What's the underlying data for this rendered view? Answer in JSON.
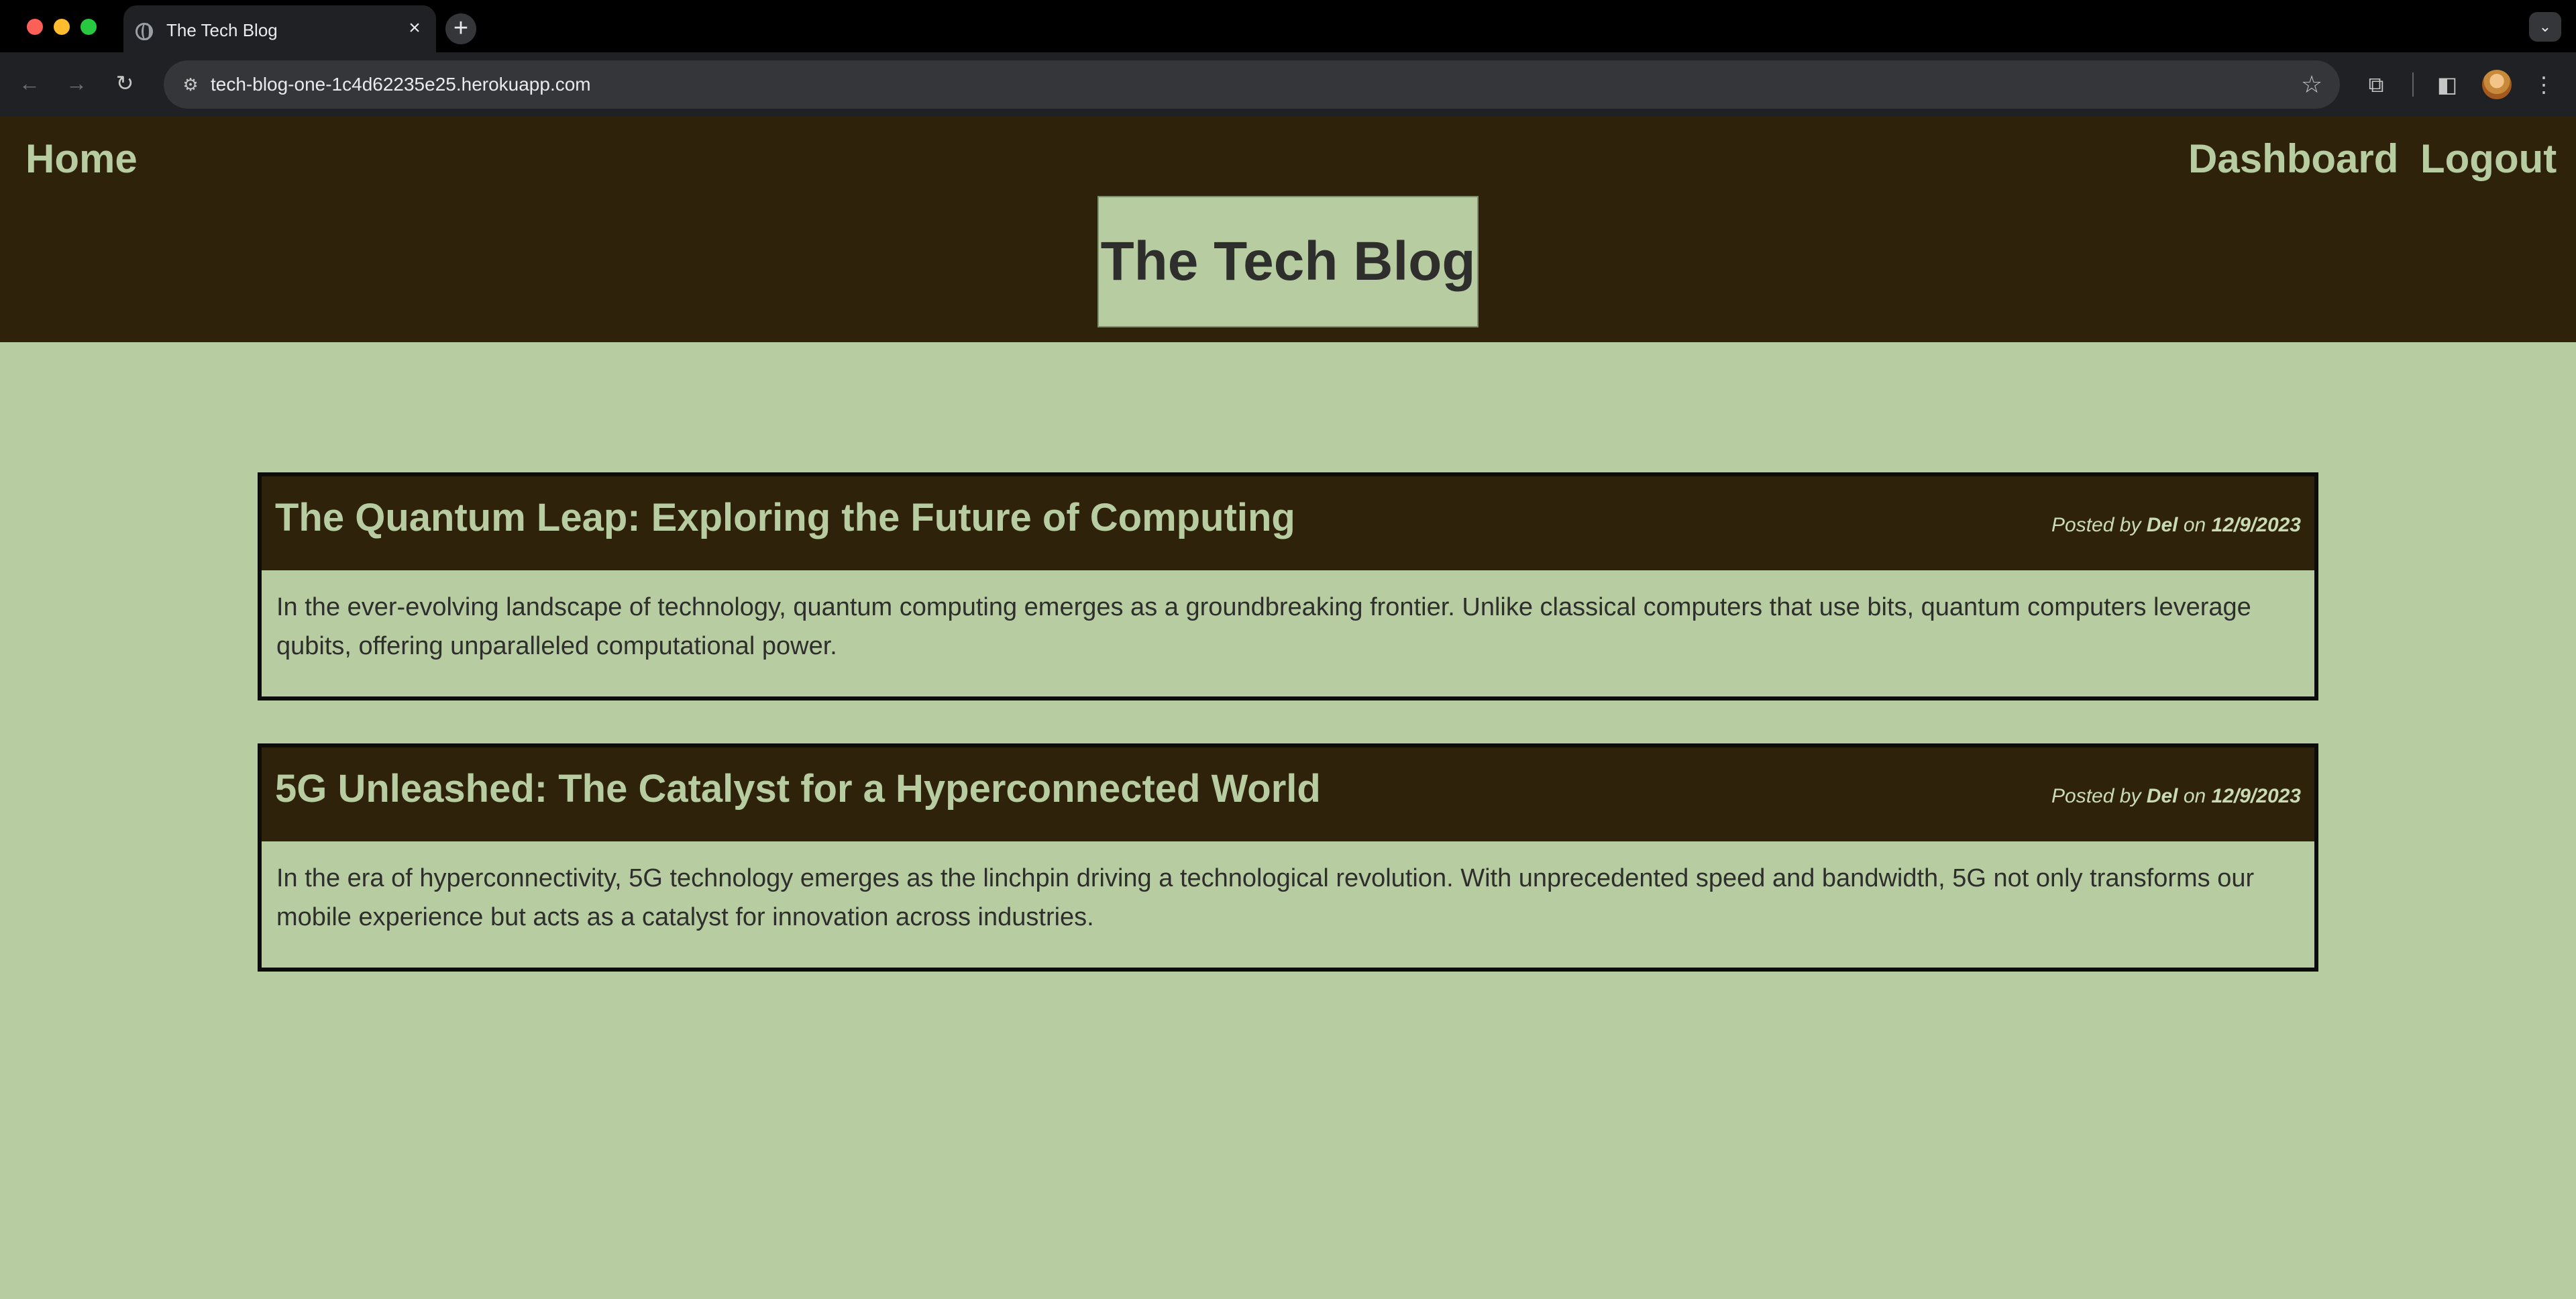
{
  "browser": {
    "tab_title": "The Tech Blog",
    "tab_close": "×",
    "new_tab": "+",
    "tab_menu": "⌄",
    "url": "tech-blog-one-1c4d62235e25.herokuapp.com",
    "icons": [
      "back-icon",
      "forward-icon",
      "reload-icon",
      "site-info-icon",
      "star-icon",
      "extensions-icon",
      "side-panel-icon",
      "menu-icon"
    ]
  },
  "nav": {
    "home": "Home",
    "dashboard": "Dashboard",
    "logout": "Logout"
  },
  "site": {
    "title": "The Tech Blog"
  },
  "posts": [
    {
      "title": "The Quantum Leap: Exploring the Future of Computing",
      "posted_by_prefix": "Posted by ",
      "author": "Del",
      "on": " on ",
      "date": "12/9/2023",
      "body": "In the ever-evolving landscape of technology, quantum computing emerges as a groundbreaking frontier. Unlike classical computers that use bits, quantum computers leverage qubits, offering unparalleled computational power."
    },
    {
      "title": "5G Unleashed: The Catalyst for a Hyperconnected World",
      "posted_by_prefix": "Posted by ",
      "author": "Del",
      "on": " on ",
      "date": "12/9/2023",
      "body": "In the era of hyperconnectivity, 5G technology emerges as the linchpin driving a technological revolution. With unprecedented speed and bandwidth, 5G not only transforms our mobile experience but acts as a catalyst for innovation across industries."
    }
  ],
  "colors": {
    "header_bg": "#2e230a",
    "page_bg": "#b8cca2",
    "text_dark": "#2e2f2d"
  }
}
